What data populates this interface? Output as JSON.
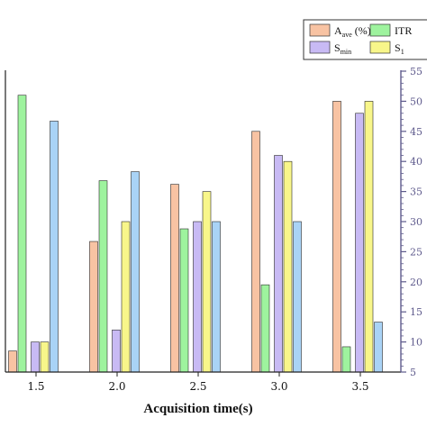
{
  "chart_data": {
    "type": "bar",
    "xlabel": "Acquisition time(s)",
    "categories": [
      "1.5",
      "2.0",
      "2.5",
      "3.0",
      "3.5"
    ],
    "series": [
      {
        "name": "A_ave (%)",
        "label_main": "A",
        "label_sub": "ave",
        "label_suffix": " (%)",
        "color": "#f8c3a3",
        "values": [
          8.5,
          26.7,
          36.2,
          45.0,
          50.0
        ]
      },
      {
        "name": "ITR",
        "label_main": "ITR",
        "label_sub": "",
        "label_suffix": "",
        "color": "#9ef39e",
        "values": [
          51.0,
          36.8,
          28.8,
          19.5,
          9.2
        ]
      },
      {
        "name": "S_min",
        "label_main": "S",
        "label_sub": "min",
        "label_suffix": "",
        "color": "#c8baf4",
        "values": [
          10.0,
          12.0,
          30.0,
          41.0,
          48.0
        ]
      },
      {
        "name": "S_1",
        "label_main": "S",
        "label_sub": "1",
        "label_suffix": "",
        "color": "#f8f68a",
        "values": [
          10.0,
          30.0,
          35.0,
          40.0,
          50.0
        ]
      },
      {
        "name": "",
        "label_main": "",
        "label_sub": "",
        "label_suffix": "",
        "color": "#a9d3f6",
        "values": [
          46.7,
          38.3,
          30.0,
          30.0,
          13.3
        ]
      }
    ],
    "yticks": [
      "5",
      "10",
      "15",
      "20",
      "25",
      "30",
      "35",
      "40",
      "45",
      "50",
      "55"
    ],
    "ylim": [
      5,
      55
    ],
    "legend_position": "top-right",
    "grid": false
  }
}
